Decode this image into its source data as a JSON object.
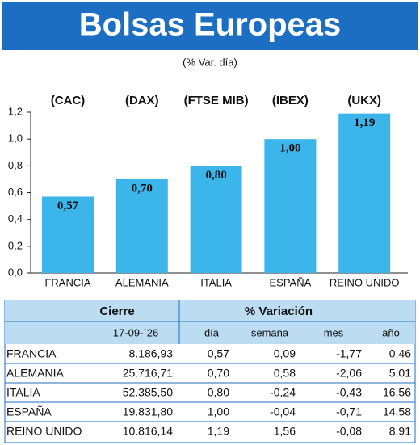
{
  "chart_data": {
    "type": "bar",
    "title": "Bolsas Europeas",
    "subtitle": "(% Var. día)",
    "categories": [
      "FRANCIA",
      "ALEMANIA",
      "ITALIA",
      "ESPAÑA",
      "REINO UNIDO"
    ],
    "indices": [
      "(CAC)",
      "(DAX)",
      "(FTSE MIB)",
      "(IBEX)",
      "(UKX)"
    ],
    "values": [
      0.57,
      0.7,
      0.8,
      1.0,
      1.19
    ],
    "value_labels": [
      "0,57",
      "0,70",
      "0,80",
      "1,00",
      "1,19"
    ],
    "color": "#3cb6ea",
    "ylim": [
      0,
      1.2
    ],
    "yticks": [
      {
        "value": 0,
        "label": "0,0"
      },
      {
        "value": 0.2,
        "label": "0,2"
      },
      {
        "value": 0.4,
        "label": "0,4"
      },
      {
        "value": 0.6,
        "label": "0,6"
      },
      {
        "value": 0.8,
        "label": "0,8"
      },
      {
        "value": 1.0,
        "label": "1,0"
      },
      {
        "value": 1.2,
        "label": "1,2"
      }
    ],
    "grid": false
  },
  "table": {
    "header": [
      "Cierre",
      "% Variación"
    ],
    "subheader": [
      "17-09-´26",
      "día",
      "semana",
      "mes",
      "año"
    ],
    "rows": [
      [
        "FRANCIA",
        "8.186,93",
        "0,57",
        "0,09",
        "-1,77",
        "0,46"
      ],
      [
        "ALEMANIA",
        "25.716,71",
        "0,70",
        "0,58",
        "-2,06",
        "5,01"
      ],
      [
        "ITALIA",
        "52.385,50",
        "0,80",
        "-0,24",
        "-0,43",
        "16,56"
      ],
      [
        "ESPAÑA",
        "19.831,80",
        "1,00",
        "-0,04",
        "-0,71",
        "14,58"
      ],
      [
        "REINO UNIDO",
        "10.816,14",
        "1,19",
        "1,56",
        "-0,08",
        "8,91"
      ]
    ]
  }
}
